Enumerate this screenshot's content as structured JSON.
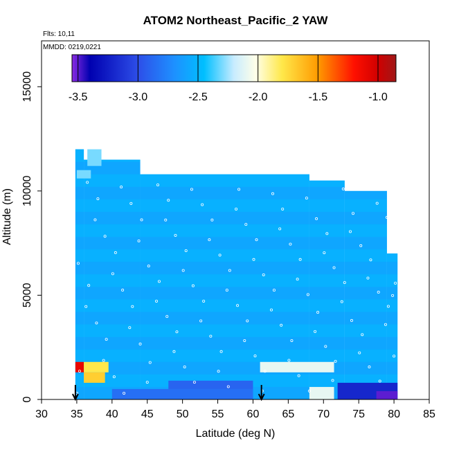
{
  "chart_data": {
    "type": "heatmap",
    "title": "ATOM2 Northeast_Pacific_2 YAW",
    "flights_note": "Flts: 10,11",
    "dates_note": "MMDD: 0219,0221",
    "xlabel": "Latitude (deg N)",
    "ylabel": "Altitude (m)",
    "xlim": [
      30,
      85
    ],
    "ylim": [
      0,
      17200
    ],
    "x_ticks": [
      30,
      35,
      40,
      45,
      50,
      55,
      60,
      65,
      70,
      75,
      80,
      85
    ],
    "x_tick_labels": [
      "30",
      "35",
      "40",
      "45",
      "50",
      "55",
      "60",
      "65",
      "70",
      "75",
      "80",
      "85"
    ],
    "y_ticks": [
      0,
      5000,
      10000,
      15000
    ],
    "y_tick_labels": [
      "0",
      "5000",
      "10000",
      "15000"
    ],
    "colorbar": {
      "range": [
        -3.55,
        -0.85
      ],
      "ticks": [
        -3.5,
        -3.0,
        -2.5,
        -2.0,
        -1.5,
        -1.0
      ],
      "tick_labels": [
        "-3.5",
        "-3.0",
        "-2.5",
        "-2.0",
        "-1.5",
        "-1.0"
      ],
      "stops": [
        {
          "v": -3.55,
          "c": "#8a2be2"
        },
        {
          "v": -3.4,
          "c": "#0000b0"
        },
        {
          "v": -3.0,
          "c": "#2d4ee8"
        },
        {
          "v": -2.7,
          "c": "#1e90ff"
        },
        {
          "v": -2.45,
          "c": "#00bfff"
        },
        {
          "v": -2.2,
          "c": "#c8ecff"
        },
        {
          "v": -2.02,
          "c": "#ffffe8"
        },
        {
          "v": -1.8,
          "c": "#ffe84a"
        },
        {
          "v": -1.5,
          "c": "#ff9a00"
        },
        {
          "v": -1.2,
          "c": "#ff1000"
        },
        {
          "v": -1.0,
          "c": "#d00000"
        },
        {
          "v": -0.85,
          "c": "#a01818"
        }
      ]
    },
    "field": {
      "extent": [
        {
          "lat": [
            34.8,
            36.0
          ],
          "alt": [
            0,
            12000
          ]
        },
        {
          "lat": [
            36.0,
            44.0
          ],
          "alt": [
            0,
            11500
          ]
        },
        {
          "lat": [
            44.0,
            68.0
          ],
          "alt": [
            0,
            10800
          ]
        },
        {
          "lat": [
            68.0,
            73.0
          ],
          "alt": [
            0,
            10500
          ]
        },
        {
          "lat": [
            73.0,
            79.0
          ],
          "alt": [
            0,
            10000
          ]
        },
        {
          "lat": [
            79.0,
            80.5
          ],
          "alt": [
            0,
            7000
          ]
        }
      ],
      "background_value": -2.55,
      "features": [
        {
          "lat": [
            34.8,
            36.0
          ],
          "alt": [
            1300,
            1800
          ],
          "value": -1.1
        },
        {
          "lat": [
            36.0,
            39.5
          ],
          "alt": [
            1300,
            1800
          ],
          "value": -1.8
        },
        {
          "lat": [
            36.0,
            39.0
          ],
          "alt": [
            800,
            1300
          ],
          "value": -1.7
        },
        {
          "lat": [
            61.0,
            71.5
          ],
          "alt": [
            1300,
            1800
          ],
          "value": -2.1
        },
        {
          "lat": [
            68.0,
            71.5
          ],
          "alt": [
            0,
            600
          ],
          "value": -2.1
        },
        {
          "lat": [
            72.0,
            80.5
          ],
          "alt": [
            0,
            800
          ],
          "value": -3.2
        },
        {
          "lat": [
            77.5,
            80.5
          ],
          "alt": [
            0,
            400
          ],
          "value": -3.5
        },
        {
          "lat": [
            40.0,
            60.0
          ],
          "alt": [
            0,
            500
          ],
          "value": -2.85
        },
        {
          "lat": [
            48.0,
            60.0
          ],
          "alt": [
            500,
            900
          ],
          "value": -2.9
        },
        {
          "lat": [
            36.5,
            38.5
          ],
          "alt": [
            11200,
            12000
          ],
          "value": -2.3
        },
        {
          "lat": [
            35.0,
            37.0
          ],
          "alt": [
            10600,
            11000
          ],
          "value": -2.3
        }
      ]
    },
    "obs_markers_lat": [
      35.2,
      36.5,
      37.8,
      39.0,
      40.3,
      41.5,
      42.7,
      44.0,
      45.2,
      46.5,
      47.8,
      49.0,
      50.3,
      51.5,
      52.8,
      54.0,
      55.3,
      56.5,
      57.8,
      59.0,
      60.3,
      61.5,
      62.8,
      64.0,
      65.3,
      66.5,
      67.8,
      69.0,
      70.3,
      71.5,
      72.8,
      74.0,
      75.3,
      76.5,
      77.8,
      79.0,
      80.0
    ],
    "profile_arrows_lat": [
      34.8,
      61.2
    ]
  }
}
